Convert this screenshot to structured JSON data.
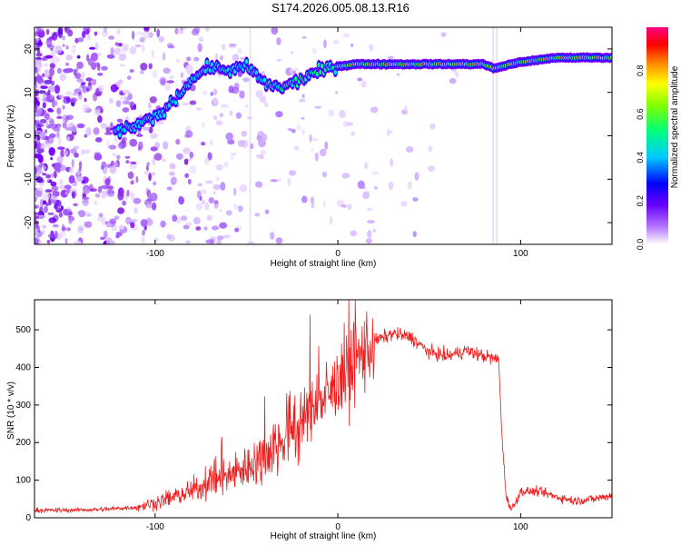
{
  "page": {
    "title": "S174.2026.005.08.13.R16"
  },
  "chart_data": [
    {
      "type": "heatmap",
      "title": "S174.2026.005.08.13.R16",
      "xlabel": "Height of straight line (km)",
      "ylabel": "Frequency (Hz)",
      "xlim": [
        -166,
        150
      ],
      "ylim": [
        -25,
        25
      ],
      "x_ticks": [
        -100,
        0,
        100
      ],
      "y_ticks": [
        -20,
        -10,
        0,
        10,
        20
      ],
      "grid": false,
      "colorbar": {
        "label": "Normalized spectral amplitude",
        "range": [
          0,
          1
        ],
        "ticks": [
          0.0,
          0.2,
          0.4,
          0.6,
          0.8
        ],
        "colormap": [
          "#ffffff",
          "#9a2bff",
          "#0000ff",
          "#00cfff",
          "#00ff66",
          "#ffff00",
          "#ff3300",
          "#ff0066"
        ]
      },
      "ridge": {
        "description_points_x": [
          -120,
          -100,
          -90,
          -80,
          -70,
          -60,
          -50,
          -40,
          -30,
          -20,
          -10,
          0,
          10,
          20,
          40,
          60,
          80,
          85,
          90,
          100,
          110,
          120,
          130,
          140,
          148
        ],
        "description_points_y": [
          1,
          4,
          8,
          13,
          16,
          15,
          16,
          12,
          11,
          13,
          15,
          16,
          16.5,
          16.5,
          16.5,
          16.5,
          16.5,
          15.5,
          16,
          17,
          17.5,
          18,
          18,
          18,
          18
        ]
      }
    },
    {
      "type": "line",
      "title": "",
      "xlabel": "Height of straight line (km)",
      "ylabel": "SNR (10 * v/v)",
      "xlim": [
        -166,
        150
      ],
      "ylim": [
        0,
        580
      ],
      "x_ticks": [
        -100,
        0,
        100
      ],
      "y_ticks": [
        0,
        100,
        200,
        300,
        400,
        500
      ],
      "grid": false,
      "series": [
        {
          "color": "#ee1c1c",
          "x": [
            -166,
            -150,
            -130,
            -110,
            -100,
            -90,
            -80,
            -70,
            -60,
            -50,
            -40,
            -30,
            -20,
            -10,
            0,
            10,
            20,
            30,
            40,
            50,
            60,
            70,
            80,
            88,
            90,
            92,
            95,
            100,
            110,
            120,
            130,
            140,
            150
          ],
          "y": [
            20,
            20,
            22,
            28,
            40,
            55,
            70,
            95,
            110,
            135,
            165,
            210,
            260,
            300,
            350,
            420,
            470,
            490,
            480,
            440,
            430,
            445,
            430,
            420,
            200,
            60,
            20,
            70,
            70,
            55,
            45,
            50,
            60
          ]
        }
      ]
    }
  ],
  "colors": {
    "series": "#ee1c1c",
    "axis": "#000000",
    "background": "#ffffff"
  }
}
